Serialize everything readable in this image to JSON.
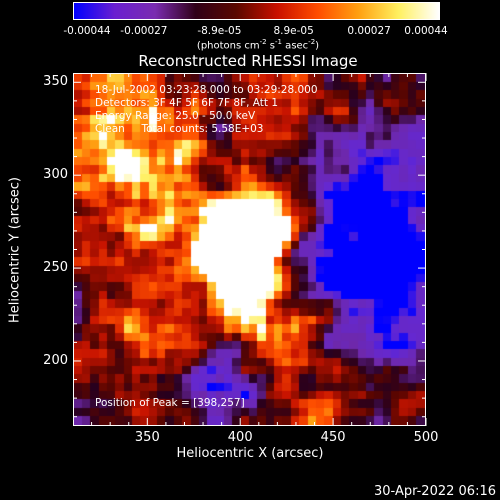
{
  "colorbar": {
    "ticks": [
      "-0.00044",
      "-0.00027",
      "-8.9e-05",
      "8.9e-05",
      "0.00027",
      "0.00044"
    ],
    "tick_values": [
      -0.00044,
      -0.00027,
      -8.9e-05,
      8.9e-05,
      0.00027,
      0.00044
    ],
    "unit_pre": "(photons cm",
    "unit_sup1": "-2",
    "unit_mid": " s",
    "unit_sup2": "-1",
    "unit_mid2": " asec",
    "unit_sup3": "-2",
    "unit_post": ")",
    "colors": [
      "#0000ff",
      "#6a1fd0",
      "#7a2cb0",
      "#300018",
      "#5a0800",
      "#c81000",
      "#ff4c00",
      "#ff9f10",
      "#fff060",
      "#ffffff"
    ]
  },
  "chart_data": {
    "type": "heatmap",
    "title": "Reconstructed RHESSI Image",
    "xlabel": "Heliocentric X (arcsec)",
    "ylabel": "Heliocentric Y (arcsec)",
    "xlim": [
      310,
      500
    ],
    "ylim": [
      165,
      355
    ],
    "xticks": [
      350,
      400,
      450,
      500
    ],
    "yticks": [
      200,
      250,
      300,
      350
    ],
    "peak": [
      398,
      257
    ],
    "grid_cells": 42,
    "info_lines": [
      "18-Jul-2002 03:23:28.000 to 03:29:28.000",
      "Detectors: 3F 4F 5F 6F 7F 8F, Att 1",
      "Energy Range: 25.0 - 50.0 keV",
      "Clean     Total counts: 5.58E+03"
    ],
    "peak_label": "Position of Peak = [398,257]"
  },
  "footer": {
    "timestamp": "30-Apr-2022 06:16"
  }
}
